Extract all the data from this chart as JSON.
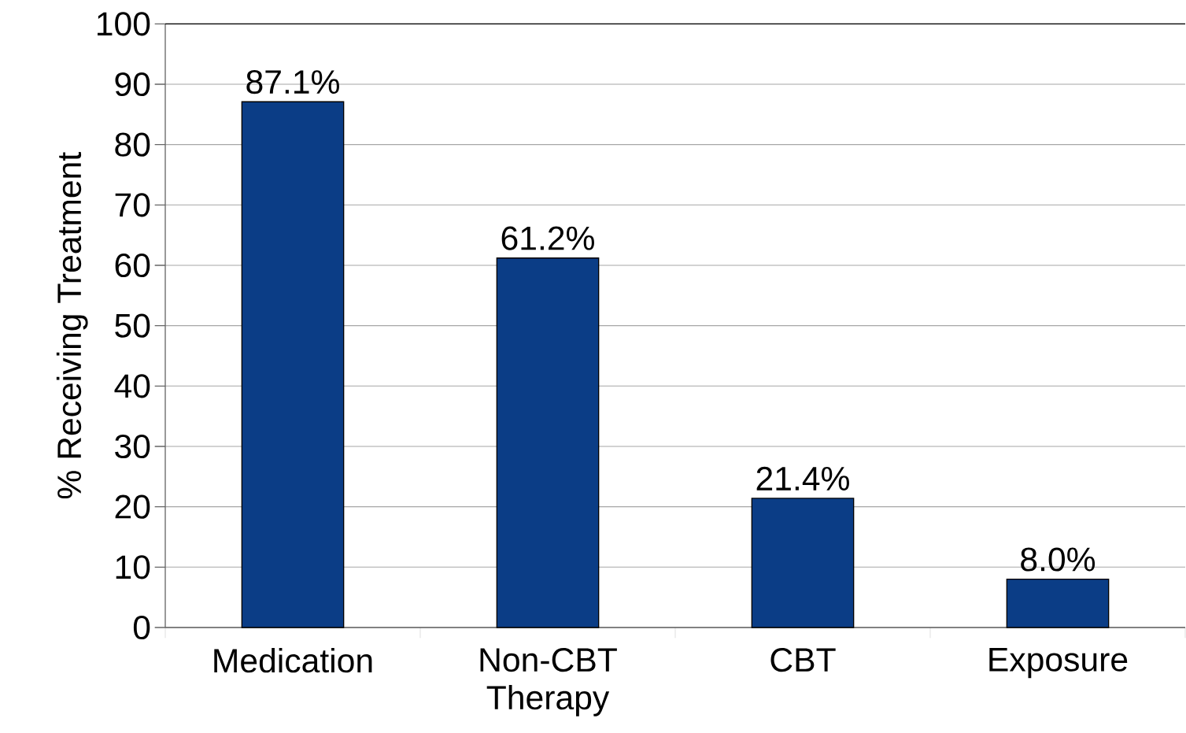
{
  "chart_data": {
    "type": "bar",
    "ylabel": "% Receiving Treatment",
    "categories": [
      "Medication",
      "Non-CBT Therapy",
      "CBT",
      "Exposure"
    ],
    "values": [
      87.1,
      61.2,
      21.4,
      8.0
    ],
    "value_labels": [
      "87.1%",
      "61.2%",
      "21.4%",
      "8.0%"
    ],
    "color": "#0b3d86",
    "ylim": [
      0,
      100
    ],
    "yticks": [
      0,
      10,
      20,
      30,
      40,
      50,
      60,
      70,
      80,
      90,
      100
    ],
    "grid": "y"
  }
}
